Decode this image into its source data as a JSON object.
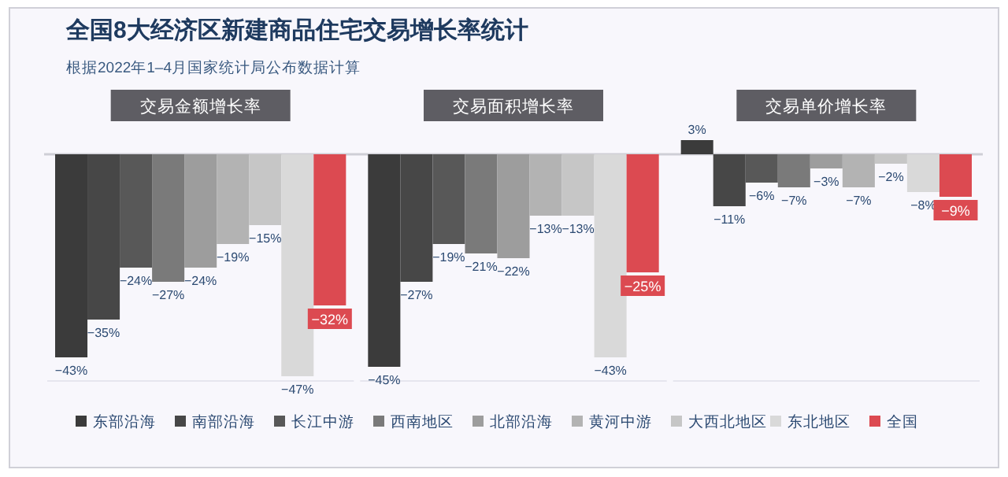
{
  "chart_data": {
    "type": "bar",
    "title": "全国8大经济区新建商品住宅交易增长率统计",
    "subtitle": "根据2022年1–4月国家统计局公布数据计算",
    "categories": [
      "交易金额增长率",
      "交易面积增长率",
      "交易单价增长率"
    ],
    "legend": "bottom",
    "series": [
      {
        "name": "东部沿海",
        "color": "#3b3b3b",
        "values": [
          -43,
          -45,
          3
        ],
        "value_labels": [
          "−43%",
          "−45%",
          "3%"
        ]
      },
      {
        "name": "南部沿海",
        "color": "#474747",
        "values": [
          -35,
          -27,
          -11
        ],
        "value_labels": [
          "−35%",
          "−27%",
          "−11%"
        ]
      },
      {
        "name": "长江中游",
        "color": "#585858",
        "values": [
          -24,
          -19,
          -6
        ],
        "value_labels": [
          "−24%",
          "−19%",
          "−6%"
        ]
      },
      {
        "name": "西南地区",
        "color": "#7a7a7a",
        "values": [
          -27,
          -21,
          -7
        ],
        "value_labels": [
          "−27%",
          "−21%",
          "−7%"
        ]
      },
      {
        "name": "北部沿海",
        "color": "#9d9d9d",
        "values": [
          -24,
          -22,
          -3
        ],
        "value_labels": [
          "−24%",
          "−22%",
          "−3%"
        ]
      },
      {
        "name": "黄河中游",
        "color": "#b3b3b3",
        "values": [
          -19,
          -13,
          -7
        ],
        "value_labels": [
          "−19%",
          "−13%",
          "−7%"
        ]
      },
      {
        "name": "大西北地区",
        "color": "#c6c6c6",
        "values": [
          -15,
          -13,
          -2
        ],
        "value_labels": [
          "−15%",
          "−13%",
          "−2%"
        ]
      },
      {
        "name": "东北地区",
        "color": "#d9d9d9",
        "values": [
          -47,
          -43,
          -8
        ],
        "value_labels": [
          "−47%",
          "−43%",
          "−8%"
        ]
      },
      {
        "name": "全国",
        "color": "#dc4a51",
        "values": [
          -32,
          -25,
          -9
        ],
        "value_labels": [
          "−32%",
          "−25%",
          "−9%"
        ]
      }
    ]
  }
}
